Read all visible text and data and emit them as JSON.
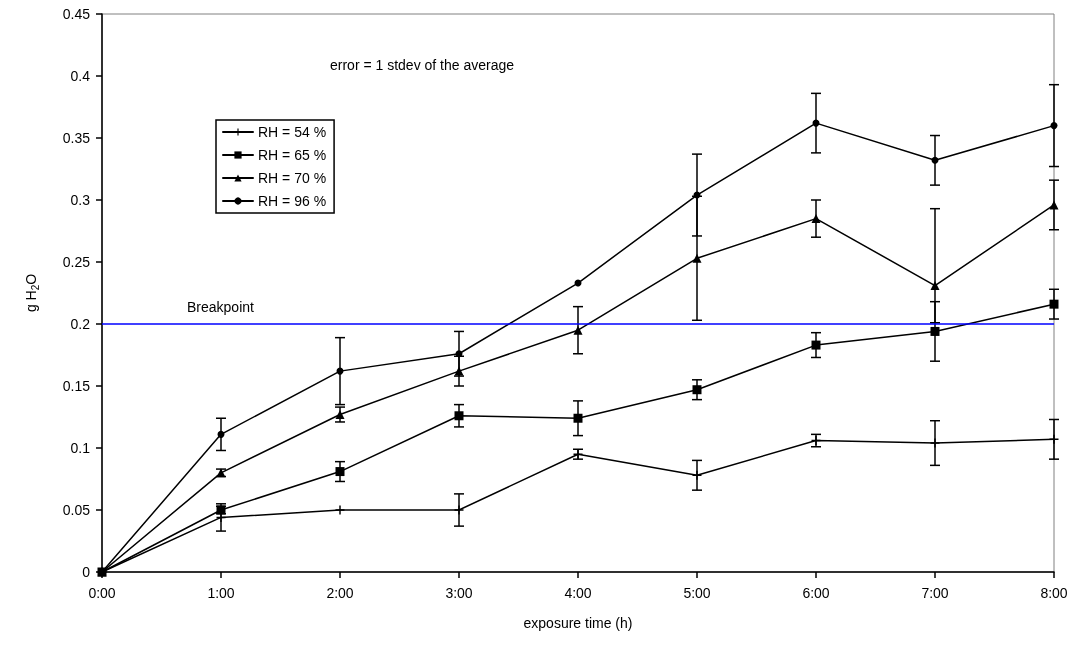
{
  "chart_data": {
    "type": "line",
    "xlabel": "exposure time (h)",
    "ylabel": "g H$_{2}$O",
    "annotations": [
      "error = 1 stdev of the average"
    ],
    "x": [
      0,
      1,
      2,
      3,
      4,
      5,
      6,
      7,
      8
    ],
    "xlim": [
      0,
      8
    ],
    "xticks": [
      {
        "value": 0,
        "label": "0:00"
      },
      {
        "value": 1,
        "label": "1:00"
      },
      {
        "value": 2,
        "label": "2:00"
      },
      {
        "value": 3,
        "label": "3:00"
      },
      {
        "value": 4,
        "label": "4:00"
      },
      {
        "value": 5,
        "label": "5:00"
      },
      {
        "value": 6,
        "label": "6:00"
      },
      {
        "value": 7,
        "label": "7:00"
      },
      {
        "value": 8,
        "label": "8:00"
      }
    ],
    "ylim": [
      0,
      0.45
    ],
    "yticks": [
      0,
      0.05,
      0.1,
      0.15,
      0.2,
      0.25,
      0.3,
      0.35,
      0.4,
      0.45
    ],
    "grid": false,
    "legend": "top left",
    "line_style": "solid",
    "ref_lines": [
      {
        "axis": "y",
        "value": 0.2,
        "label": "Breakpoint",
        "color": "#0000ff"
      }
    ],
    "series": [
      {
        "name": "RH = 54 %",
        "color": "#000000",
        "marker": "cross",
        "values": [
          0,
          0.044,
          0.05,
          0.05,
          0.095,
          0.078,
          0.106,
          0.104,
          0.107
        ],
        "errors": [
          null,
          0.011,
          null,
          0.013,
          0.004,
          0.012,
          0.005,
          0.018,
          0.016
        ]
      },
      {
        "name": "RH = 65 %",
        "color": "#000000",
        "marker": "square",
        "values": [
          0,
          0.05,
          0.081,
          0.126,
          0.124,
          0.147,
          0.183,
          0.194,
          0.216
        ],
        "errors": [
          null,
          0.003,
          0.008,
          0.009,
          0.014,
          0.008,
          0.01,
          0.024,
          0.012
        ]
      },
      {
        "name": "RH = 70 %",
        "color": "#000000",
        "marker": "triangle",
        "values": [
          0,
          0.08,
          0.127,
          0.162,
          0.195,
          0.253,
          0.285,
          0.231,
          0.296
        ],
        "errors": [
          null,
          0.003,
          0.006,
          0.012,
          0.019,
          0.05,
          0.015,
          [
            0.201,
            0.293
          ],
          0.02
        ]
      },
      {
        "name": "RH = 96 %",
        "color": "#000000",
        "marker": "circle",
        "values": [
          0,
          0.111,
          0.162,
          0.176,
          0.233,
          0.304,
          0.362,
          0.332,
          0.36
        ],
        "errors": [
          null,
          0.013,
          0.027,
          0.018,
          null,
          0.033,
          0.024,
          0.02,
          0.033
        ]
      }
    ]
  }
}
